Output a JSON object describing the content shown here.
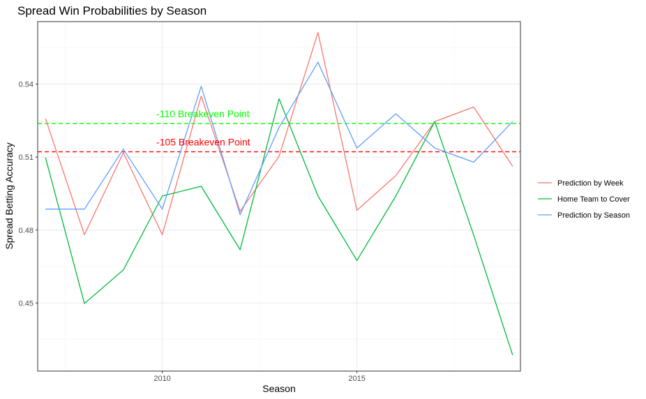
{
  "chart_data": {
    "type": "line",
    "title": "Spread Win Probabilities by Season",
    "xlabel": "Season",
    "ylabel": "Spread Betting Accuracy",
    "xlim": [
      2006.8,
      2019.2
    ],
    "ylim": [
      0.422,
      0.5657
    ],
    "x_ticks": [
      2010,
      2015
    ],
    "x_minor_ticks": [
      2007.5,
      2012.5,
      2017.5
    ],
    "y_ticks": [
      0.45,
      0.48,
      0.51,
      0.54
    ],
    "y_minor_ticks": [
      0.435,
      0.465,
      0.495,
      0.525,
      0.555
    ],
    "grid": true,
    "legend_position": "right",
    "x": [
      2007,
      2008,
      2009,
      2010,
      2011,
      2012,
      2013,
      2014,
      2015,
      2016,
      2017,
      2018,
      2019
    ],
    "series": [
      {
        "name": "Prediction by Week",
        "color": "#F8766D",
        "values": [
          0.5258,
          0.4781,
          0.5118,
          0.4781,
          0.5351,
          0.4877,
          0.5103,
          0.5612,
          0.4881,
          0.5024,
          0.5246,
          0.5306,
          0.5062
        ]
      },
      {
        "name": "Home Team to Cover",
        "color": "#00BA38",
        "values": [
          0.5098,
          0.4498,
          0.4636,
          0.494,
          0.498,
          0.4719,
          0.534,
          0.494,
          0.4675,
          0.494,
          0.5246,
          0.4779,
          0.4286
        ]
      },
      {
        "name": "Prediction by Season",
        "color": "#619CFF",
        "values": [
          0.4886,
          0.4886,
          0.5133,
          0.4886,
          0.5391,
          0.4863,
          0.5222,
          0.549,
          0.5137,
          0.5278,
          0.5137,
          0.5079,
          0.5246
        ]
      }
    ],
    "reference_lines": [
      {
        "label": "-110 Breakeven Point",
        "y": 0.5238,
        "color": "#00FF00"
      },
      {
        "label": "-105 Breakeven Point",
        "y": 0.5122,
        "color": "#FF0000"
      }
    ]
  }
}
